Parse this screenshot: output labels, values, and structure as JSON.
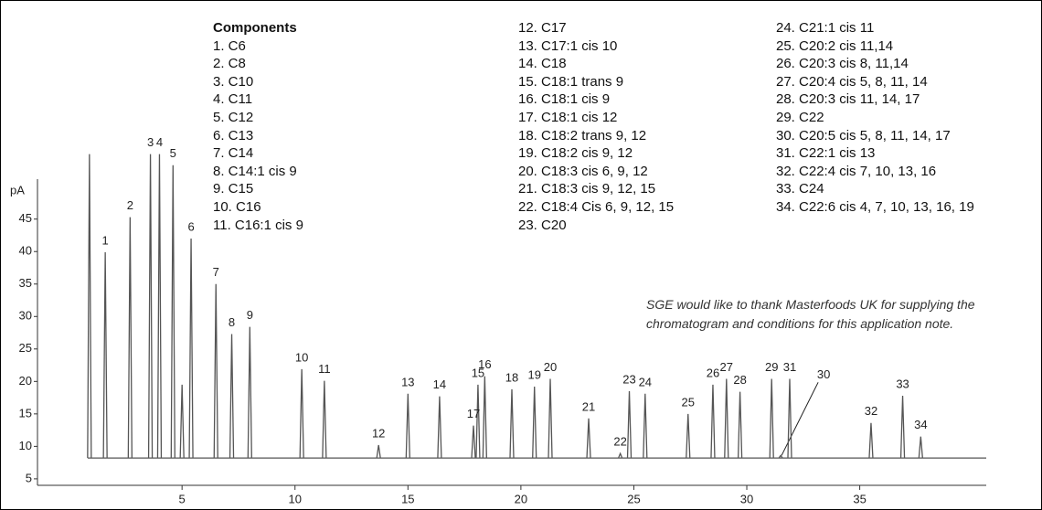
{
  "chart_data": {
    "type": "chromatogram",
    "y_label": "pA",
    "legend_title": "Components",
    "components": [
      "1. C6",
      "2. C8",
      "3. C10",
      "4. C11",
      "5. C12",
      "6. C13",
      "7. C14",
      "8. C14:1 cis 9",
      "9. C15",
      "10. C16",
      "11. C16:1 cis 9",
      "12. C17",
      "13. C17:1 cis 10",
      "14. C18",
      "15. C18:1 trans 9",
      "16. C18:1 cis 9",
      "17. C18:1 cis 12",
      "18. C18:2 trans 9, 12",
      "19. C18:2 cis 9, 12",
      "20. C18:3 cis 6, 9, 12",
      "21. C18:3 cis 9, 12, 15",
      "22. C18:4 Cis 6, 9, 12, 15",
      "23. C20",
      "24. C21:1 cis 11",
      "25. C20:2 cis 11,14",
      "26. C20:3 cis 8, 11,14",
      "27. C20:4 cis 5, 8, 11, 14",
      "28. C20:3 cis 11, 14, 17",
      "29. C22",
      "30. C20:5 cis 5, 8, 11, 14, 17",
      "31. C22:1 cis 13",
      "32. C22:4 cis 7, 10, 13, 16",
      "33. C24",
      "34. C22:6 cis 4, 7, 10, 13, 16, 19"
    ],
    "note": "SGE would like to thank Masterfoods UK for supplying the chromatogram and conditions for this application note.",
    "x": [
      0.9,
      1.6,
      2.7,
      3.6,
      4.0,
      4.6,
      5.0,
      5.4,
      6.5,
      7.2,
      8.0,
      10.3,
      11.3,
      13.7,
      15.0,
      16.4,
      18.1,
      18.4,
      17.9,
      19.6,
      20.6,
      21.3,
      23.0,
      24.4,
      24.8,
      25.5,
      27.4,
      28.5,
      29.1,
      29.7,
      31.1,
      31.5,
      31.9,
      35.5,
      36.9,
      37.7
    ],
    "values": [
      55,
      39.9,
      45.3,
      55,
      55,
      53.3,
      19.5,
      42,
      35,
      27.3,
      28.4,
      21.9,
      20.1,
      10.2,
      18.1,
      17.7,
      19.5,
      20.8,
      13.2,
      18.8,
      19.2,
      20.4,
      14.3,
      8.9,
      18.5,
      18.1,
      15,
      19.5,
      20.4,
      18.4,
      20.4,
      8.6,
      20.4,
      13.6,
      17.8,
      11.5
    ],
    "peak_labels": [
      null,
      "1",
      "2",
      "3",
      "4",
      "5",
      null,
      "6",
      "7",
      "8",
      "9",
      "10",
      "11",
      "12",
      "13",
      "14",
      "15",
      "16",
      "17",
      "18",
      "19",
      "20",
      "21",
      "22",
      "23",
      "24",
      "25",
      "26",
      "27",
      "28",
      "29",
      "30",
      "31",
      "32",
      "33",
      "34"
    ],
    "baseline": 8.2,
    "color": "#555555",
    "xlim": [
      -1.4,
      40.6
    ],
    "ylim": [
      4,
      78.6
    ],
    "xticks": [
      5,
      10,
      15,
      20,
      25,
      30,
      35
    ],
    "yticks": [
      5,
      10,
      15,
      20,
      25,
      30,
      35,
      40,
      45
    ]
  }
}
